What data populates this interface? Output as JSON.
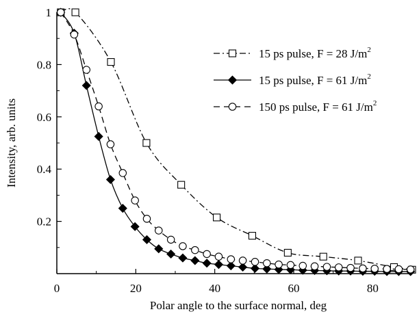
{
  "chart_data": {
    "type": "line",
    "title": "",
    "xlabel": "Polar angle to the surface normal, deg",
    "ylabel": "Intensity, arb. units",
    "xlim": [
      0,
      90
    ],
    "ylim": [
      0,
      1
    ],
    "x_ticks": [
      0,
      20,
      40,
      60,
      80
    ],
    "x_tick_labels": [
      "0",
      "20",
      "40",
      "60",
      "80"
    ],
    "y_ticks": [
      0.2,
      0.4,
      0.6,
      0.8,
      1
    ],
    "y_tick_labels": [
      "0.2",
      "0.4",
      "0.6",
      "0.8",
      "1"
    ],
    "grid": false,
    "legend_position": "top-right",
    "series": [
      {
        "name": "15 ps pulse,  F = 28 J/m",
        "name_sup": "2",
        "marker": "square-open",
        "line_style": "dash-dot",
        "x": [
          1,
          4.7,
          13.7,
          22.7,
          31.5,
          40.5,
          49.5,
          58.5,
          67.5,
          76.3,
          85.4,
          90
        ],
        "y": [
          1,
          1,
          0.81,
          0.5,
          0.34,
          0.215,
          0.145,
          0.08,
          0.065,
          0.05,
          0.025,
          0.015
        ]
      },
      {
        "name": "15 ps pulse,  F = 61 J/m",
        "name_sup": "2",
        "marker": "diamond-filled",
        "line_style": "solid",
        "x": [
          1,
          4.4,
          7.5,
          10.6,
          13.6,
          16.7,
          19.8,
          22.8,
          25.8,
          28.9,
          31.9,
          35,
          38,
          41,
          44.1,
          47.1,
          50.2,
          53.2,
          56.2,
          59.2,
          62.3,
          65.3,
          68.4,
          71.4,
          74.4,
          77.5,
          80.5,
          83.6,
          86.6,
          89.6
        ],
        "y": [
          1,
          0.92,
          0.72,
          0.525,
          0.36,
          0.25,
          0.18,
          0.13,
          0.095,
          0.075,
          0.06,
          0.05,
          0.04,
          0.035,
          0.03,
          0.025,
          0.02,
          0.018,
          0.016,
          0.015,
          0.013,
          0.012,
          0.011,
          0.01,
          0.01,
          0.009,
          0.009,
          0.008,
          0.008,
          0.008
        ]
      },
      {
        "name": "150 ps pulse,  F = 61 J/m",
        "name_sup": "2",
        "marker": "circle-open",
        "line_style": "dashed",
        "x": [
          1,
          4.4,
          7.5,
          10.6,
          13.6,
          16.7,
          19.8,
          22.8,
          25.8,
          28.9,
          31.9,
          35,
          38,
          41,
          44.1,
          47.1,
          50.2,
          53.2,
          56.2,
          59.2,
          62.3,
          65.3,
          68.4,
          71.4,
          74.4,
          77.5,
          80.5,
          83.6,
          86.6,
          89.6
        ],
        "y": [
          1,
          0.915,
          0.78,
          0.64,
          0.495,
          0.385,
          0.28,
          0.21,
          0.165,
          0.13,
          0.105,
          0.09,
          0.075,
          0.065,
          0.055,
          0.05,
          0.045,
          0.04,
          0.035,
          0.033,
          0.03,
          0.028,
          0.026,
          0.024,
          0.022,
          0.02,
          0.019,
          0.018,
          0.017,
          0.016
        ]
      }
    ]
  }
}
